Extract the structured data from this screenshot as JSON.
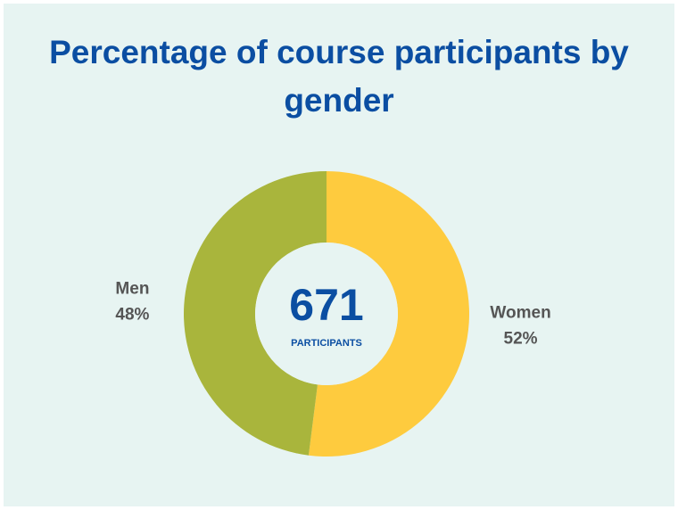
{
  "chart_data": {
    "type": "donut",
    "title": "Percentage of course participants by gender",
    "center_value": 671,
    "center_label": "PARTICIPANTS",
    "categories": [
      "Women",
      "Men"
    ],
    "values": [
      52,
      48
    ],
    "value_labels": [
      "52%",
      "48%"
    ],
    "colors": [
      "#fecb3e",
      "#a9b53c"
    ]
  }
}
